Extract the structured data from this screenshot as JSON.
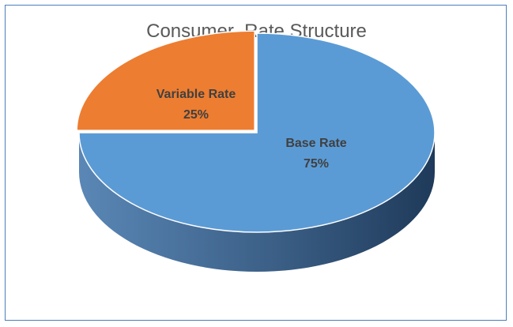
{
  "chart_data": {
    "type": "pie",
    "style": "3d",
    "title": "Consumer  Rate Structure",
    "slices": [
      {
        "name": "Base Rate",
        "value": 75,
        "label": "75%",
        "color": "#5b9bd5"
      },
      {
        "name": "Variable Rate",
        "value": 25,
        "label": "25%",
        "color": "#ed7d31"
      }
    ],
    "legend": "none"
  },
  "colors": {
    "frame_border": "#4a7ebb",
    "side_dark": "#1f3a5a",
    "side_light": "#5a87b6"
  }
}
